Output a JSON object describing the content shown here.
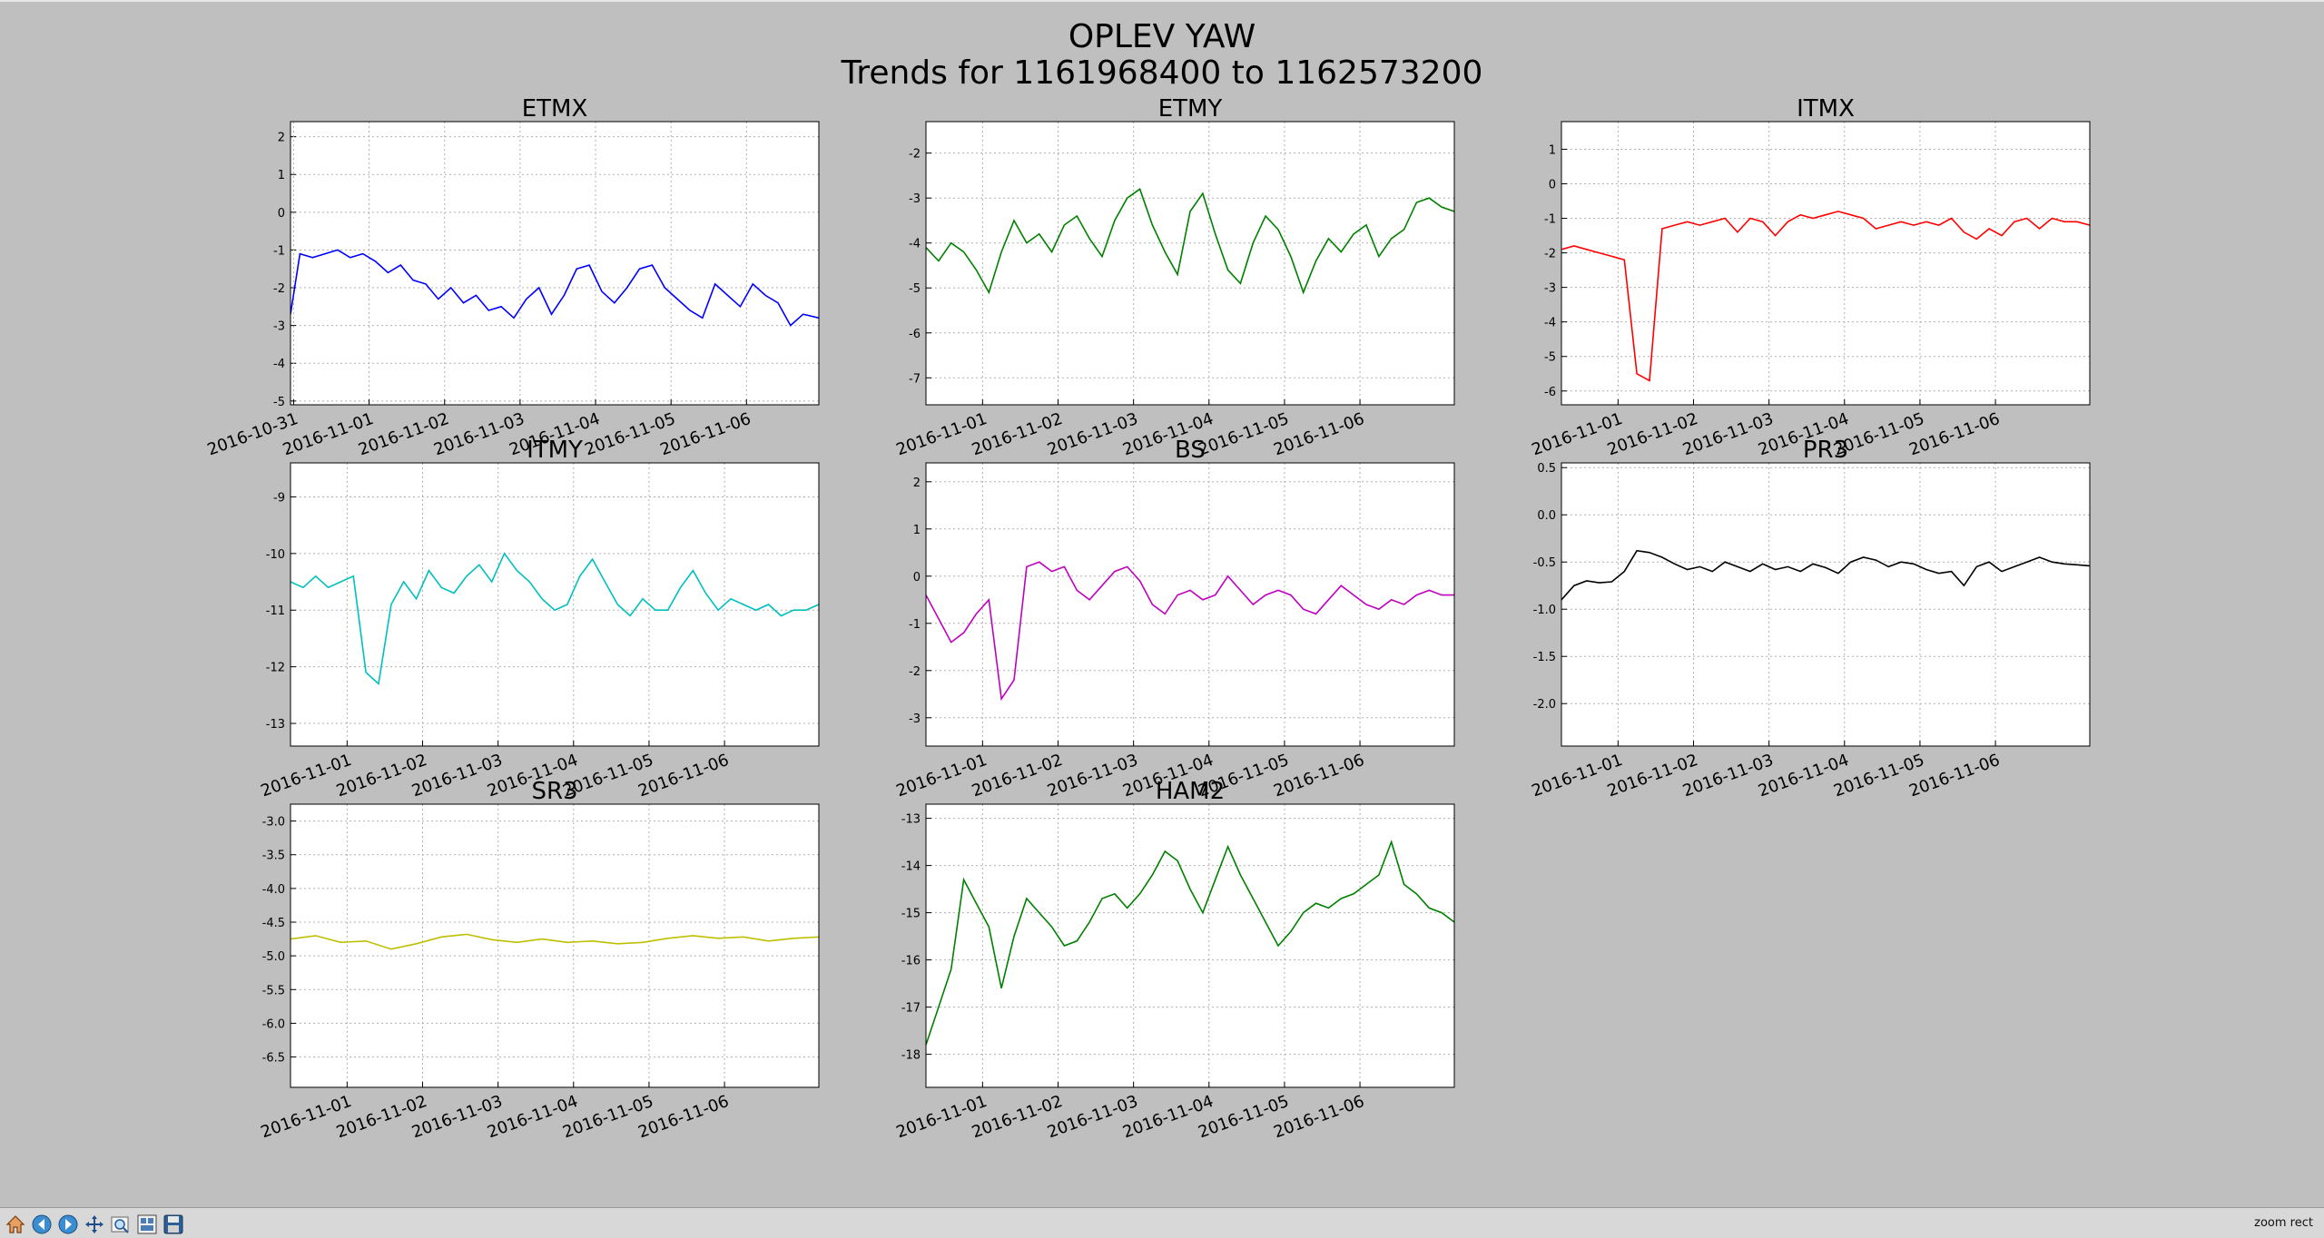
{
  "figure": {
    "title_line1": "OPLEV YAW",
    "title_line2": "Trends for 1161968400 to 1162573200"
  },
  "toolbar": {
    "buttons": [
      {
        "name": "home-button",
        "icon": "home-icon"
      },
      {
        "name": "back-button",
        "icon": "arrow-left-icon"
      },
      {
        "name": "forward-button",
        "icon": "arrow-right-icon"
      },
      {
        "name": "pan-button",
        "icon": "move-icon"
      },
      {
        "name": "zoom-button",
        "icon": "magnifier-icon"
      },
      {
        "name": "configure-subplots-button",
        "icon": "subplots-icon"
      },
      {
        "name": "save-button",
        "icon": "floppy-disk-icon"
      }
    ],
    "mode": "zoom rect"
  },
  "chart_data": [
    {
      "type": "line",
      "title": "ETMX",
      "color": "#0000ff",
      "xlim": [
        "2016-10-30T23:00",
        "2016-11-06T23:00"
      ],
      "xticks": [
        "2016-10-31",
        "2016-11-01",
        "2016-11-02",
        "2016-11-03",
        "2016-11-04",
        "2016-11-05",
        "2016-11-06"
      ],
      "ylim": [
        -5.1,
        2.4
      ],
      "yticks": [
        -5,
        -4,
        -3,
        -2,
        -1,
        0,
        1,
        2
      ],
      "grid": true,
      "x": [
        "2016-10-30T23:00",
        "2016-10-31T02:00",
        "2016-10-31T06:00",
        "2016-10-31T10:00",
        "2016-10-31T14:00",
        "2016-10-31T18:00",
        "2016-10-31T22:00",
        "2016-11-01T02:00",
        "2016-11-01T06:00",
        "2016-11-01T10:00",
        "2016-11-01T14:00",
        "2016-11-01T18:00",
        "2016-11-01T22:00",
        "2016-11-02T02:00",
        "2016-11-02T06:00",
        "2016-11-02T10:00",
        "2016-11-02T14:00",
        "2016-11-02T18:00",
        "2016-11-02T22:00",
        "2016-11-03T02:00",
        "2016-11-03T06:00",
        "2016-11-03T10:00",
        "2016-11-03T14:00",
        "2016-11-03T18:00",
        "2016-11-03T22:00",
        "2016-11-04T02:00",
        "2016-11-04T06:00",
        "2016-11-04T10:00",
        "2016-11-04T14:00",
        "2016-11-04T18:00",
        "2016-11-04T22:00",
        "2016-11-05T02:00",
        "2016-11-05T06:00",
        "2016-11-05T10:00",
        "2016-11-05T14:00",
        "2016-11-05T18:00",
        "2016-11-05T22:00",
        "2016-11-06T02:00",
        "2016-11-06T06:00",
        "2016-11-06T10:00",
        "2016-11-06T14:00",
        "2016-11-06T18:00",
        "2016-11-06T23:00"
      ],
      "y": [
        -2.7,
        -1.1,
        -1.2,
        -1.1,
        -1.0,
        -1.2,
        -1.1,
        -1.3,
        -1.6,
        -1.4,
        -1.8,
        -1.9,
        -2.3,
        -2.0,
        -2.4,
        -2.2,
        -2.6,
        -2.5,
        -2.8,
        -2.3,
        -2.0,
        -2.7,
        -2.2,
        -1.5,
        -1.4,
        -2.1,
        -2.4,
        -2.0,
        -1.5,
        -1.4,
        -2.0,
        -2.3,
        -2.6,
        -2.8,
        -1.9,
        -2.2,
        -2.5,
        -1.9,
        -2.2,
        -2.4,
        -3.0,
        -2.7,
        -2.8
      ]
    },
    {
      "type": "line",
      "title": "ETMY",
      "color": "#008000",
      "xlim": [
        "2016-10-31T06:00",
        "2016-11-07T06:00"
      ],
      "xticks": [
        "2016-11-01",
        "2016-11-02",
        "2016-11-03",
        "2016-11-04",
        "2016-11-05",
        "2016-11-06"
      ],
      "ylim": [
        -7.6,
        -1.3
      ],
      "yticks": [
        -7,
        -6,
        -5,
        -4,
        -3,
        -2
      ],
      "grid": true,
      "x": [
        "2016-10-31T06:00",
        "2016-10-31T10:00",
        "2016-10-31T14:00",
        "2016-10-31T18:00",
        "2016-10-31T22:00",
        "2016-11-01T02:00",
        "2016-11-01T06:00",
        "2016-11-01T10:00",
        "2016-11-01T14:00",
        "2016-11-01T18:00",
        "2016-11-01T22:00",
        "2016-11-02T02:00",
        "2016-11-02T06:00",
        "2016-11-02T10:00",
        "2016-11-02T14:00",
        "2016-11-02T18:00",
        "2016-11-02T22:00",
        "2016-11-03T02:00",
        "2016-11-03T06:00",
        "2016-11-03T10:00",
        "2016-11-03T14:00",
        "2016-11-03T18:00",
        "2016-11-03T22:00",
        "2016-11-04T02:00",
        "2016-11-04T06:00",
        "2016-11-04T10:00",
        "2016-11-04T14:00",
        "2016-11-04T18:00",
        "2016-11-04T22:00",
        "2016-11-05T02:00",
        "2016-11-05T06:00",
        "2016-11-05T10:00",
        "2016-11-05T14:00",
        "2016-11-05T18:00",
        "2016-11-05T22:00",
        "2016-11-06T02:00",
        "2016-11-06T06:00",
        "2016-11-06T10:00",
        "2016-11-06T14:00",
        "2016-11-06T18:00",
        "2016-11-06T22:00",
        "2016-11-07T02:00",
        "2016-11-07T06:00"
      ],
      "y": [
        -4.1,
        -4.4,
        -4.0,
        -4.2,
        -4.6,
        -5.1,
        -4.2,
        -3.5,
        -4.0,
        -3.8,
        -4.2,
        -3.6,
        -3.4,
        -3.9,
        -4.3,
        -3.5,
        -3.0,
        -2.8,
        -3.6,
        -4.2,
        -4.7,
        -3.3,
        -2.9,
        -3.8,
        -4.6,
        -4.9,
        -4.0,
        -3.4,
        -3.7,
        -4.3,
        -5.1,
        -4.4,
        -3.9,
        -4.2,
        -3.8,
        -3.6,
        -4.3,
        -3.9,
        -3.7,
        -3.1,
        -3.0,
        -3.2,
        -3.3
      ]
    },
    {
      "type": "line",
      "title": "ITMX",
      "color": "#ff0000",
      "xlim": [
        "2016-10-31T06:00",
        "2016-11-07T06:00"
      ],
      "xticks": [
        "2016-11-01",
        "2016-11-02",
        "2016-11-03",
        "2016-11-04",
        "2016-11-05",
        "2016-11-06"
      ],
      "ylim": [
        -6.4,
        1.8
      ],
      "yticks": [
        -6,
        -5,
        -4,
        -3,
        -2,
        -1,
        0,
        1
      ],
      "grid": true,
      "x": [
        "2016-10-31T06:00",
        "2016-10-31T10:00",
        "2016-10-31T14:00",
        "2016-10-31T18:00",
        "2016-10-31T22:00",
        "2016-11-01T02:00",
        "2016-11-01T06:00",
        "2016-11-01T10:00",
        "2016-11-01T14:00",
        "2016-11-01T18:00",
        "2016-11-01T22:00",
        "2016-11-02T02:00",
        "2016-11-02T06:00",
        "2016-11-02T10:00",
        "2016-11-02T14:00",
        "2016-11-02T18:00",
        "2016-11-02T22:00",
        "2016-11-03T02:00",
        "2016-11-03T06:00",
        "2016-11-03T10:00",
        "2016-11-03T14:00",
        "2016-11-03T18:00",
        "2016-11-03T22:00",
        "2016-11-04T02:00",
        "2016-11-04T06:00",
        "2016-11-04T10:00",
        "2016-11-04T14:00",
        "2016-11-04T18:00",
        "2016-11-04T22:00",
        "2016-11-05T02:00",
        "2016-11-05T06:00",
        "2016-11-05T10:00",
        "2016-11-05T14:00",
        "2016-11-05T18:00",
        "2016-11-05T22:00",
        "2016-11-06T02:00",
        "2016-11-06T06:00",
        "2016-11-06T10:00",
        "2016-11-06T14:00",
        "2016-11-06T18:00",
        "2016-11-06T22:00",
        "2016-11-07T02:00",
        "2016-11-07T06:00"
      ],
      "y": [
        -1.9,
        -1.8,
        -1.9,
        -2.0,
        -2.1,
        -2.2,
        -5.5,
        -5.7,
        -1.3,
        -1.2,
        -1.1,
        -1.2,
        -1.1,
        -1.0,
        -1.4,
        -1.0,
        -1.1,
        -1.5,
        -1.1,
        -0.9,
        -1.0,
        -0.9,
        -0.8,
        -0.9,
        -1.0,
        -1.3,
        -1.2,
        -1.1,
        -1.2,
        -1.1,
        -1.2,
        -1.0,
        -1.4,
        -1.6,
        -1.3,
        -1.5,
        -1.1,
        -1.0,
        -1.3,
        -1.0,
        -1.1,
        -1.1,
        -1.2
      ]
    },
    {
      "type": "line",
      "title": "ITMY",
      "color": "#00bfbf",
      "xlim": [
        "2016-10-31T06:00",
        "2016-11-07T06:00"
      ],
      "xticks": [
        "2016-11-01",
        "2016-11-02",
        "2016-11-03",
        "2016-11-04",
        "2016-11-05",
        "2016-11-06"
      ],
      "ylim": [
        -13.4,
        -8.4
      ],
      "yticks": [
        -13,
        -12,
        -11,
        -10,
        -9
      ],
      "grid": true,
      "x": [
        "2016-10-31T06:00",
        "2016-10-31T10:00",
        "2016-10-31T14:00",
        "2016-10-31T18:00",
        "2016-10-31T22:00",
        "2016-11-01T02:00",
        "2016-11-01T06:00",
        "2016-11-01T10:00",
        "2016-11-01T14:00",
        "2016-11-01T18:00",
        "2016-11-01T22:00",
        "2016-11-02T02:00",
        "2016-11-02T06:00",
        "2016-11-02T10:00",
        "2016-11-02T14:00",
        "2016-11-02T18:00",
        "2016-11-02T22:00",
        "2016-11-03T02:00",
        "2016-11-03T06:00",
        "2016-11-03T10:00",
        "2016-11-03T14:00",
        "2016-11-03T18:00",
        "2016-11-03T22:00",
        "2016-11-04T02:00",
        "2016-11-04T06:00",
        "2016-11-04T10:00",
        "2016-11-04T14:00",
        "2016-11-04T18:00",
        "2016-11-04T22:00",
        "2016-11-05T02:00",
        "2016-11-05T06:00",
        "2016-11-05T10:00",
        "2016-11-05T14:00",
        "2016-11-05T18:00",
        "2016-11-05T22:00",
        "2016-11-06T02:00",
        "2016-11-06T06:00",
        "2016-11-06T10:00",
        "2016-11-06T14:00",
        "2016-11-06T18:00",
        "2016-11-06T22:00",
        "2016-11-07T02:00",
        "2016-11-07T06:00"
      ],
      "y": [
        -10.5,
        -10.6,
        -10.4,
        -10.6,
        -10.5,
        -10.4,
        -12.1,
        -12.3,
        -10.9,
        -10.5,
        -10.8,
        -10.3,
        -10.6,
        -10.7,
        -10.4,
        -10.2,
        -10.5,
        -10.0,
        -10.3,
        -10.5,
        -10.8,
        -11.0,
        -10.9,
        -10.4,
        -10.1,
        -10.5,
        -10.9,
        -11.1,
        -10.8,
        -11.0,
        -11.0,
        -10.6,
        -10.3,
        -10.7,
        -11.0,
        -10.8,
        -10.9,
        -11.0,
        -10.9,
        -11.1,
        -11.0,
        -11.0,
        -10.9
      ]
    },
    {
      "type": "line",
      "title": "BS",
      "color": "#bf00bf",
      "xlim": [
        "2016-10-31T06:00",
        "2016-11-07T06:00"
      ],
      "xticks": [
        "2016-11-01",
        "2016-11-02",
        "2016-11-03",
        "2016-11-04",
        "2016-11-05",
        "2016-11-06"
      ],
      "ylim": [
        -3.6,
        2.4
      ],
      "yticks": [
        -3,
        -2,
        -1,
        0,
        1,
        2
      ],
      "grid": true,
      "x": [
        "2016-10-31T06:00",
        "2016-10-31T10:00",
        "2016-10-31T14:00",
        "2016-10-31T18:00",
        "2016-10-31T22:00",
        "2016-11-01T02:00",
        "2016-11-01T06:00",
        "2016-11-01T10:00",
        "2016-11-01T14:00",
        "2016-11-01T18:00",
        "2016-11-01T22:00",
        "2016-11-02T02:00",
        "2016-11-02T06:00",
        "2016-11-02T10:00",
        "2016-11-02T14:00",
        "2016-11-02T18:00",
        "2016-11-02T22:00",
        "2016-11-03T02:00",
        "2016-11-03T06:00",
        "2016-11-03T10:00",
        "2016-11-03T14:00",
        "2016-11-03T18:00",
        "2016-11-03T22:00",
        "2016-11-04T02:00",
        "2016-11-04T06:00",
        "2016-11-04T10:00",
        "2016-11-04T14:00",
        "2016-11-04T18:00",
        "2016-11-04T22:00",
        "2016-11-05T02:00",
        "2016-11-05T06:00",
        "2016-11-05T10:00",
        "2016-11-05T14:00",
        "2016-11-05T18:00",
        "2016-11-05T22:00",
        "2016-11-06T02:00",
        "2016-11-06T06:00",
        "2016-11-06T10:00",
        "2016-11-06T14:00",
        "2016-11-06T18:00",
        "2016-11-06T22:00",
        "2016-11-07T02:00",
        "2016-11-07T06:00"
      ],
      "y": [
        -0.4,
        -0.9,
        -1.4,
        -1.2,
        -0.8,
        -0.5,
        -2.6,
        -2.2,
        0.2,
        0.3,
        0.1,
        0.2,
        -0.3,
        -0.5,
        -0.2,
        0.1,
        0.2,
        -0.1,
        -0.6,
        -0.8,
        -0.4,
        -0.3,
        -0.5,
        -0.4,
        0.0,
        -0.3,
        -0.6,
        -0.4,
        -0.3,
        -0.4,
        -0.7,
        -0.8,
        -0.5,
        -0.2,
        -0.4,
        -0.6,
        -0.7,
        -0.5,
        -0.6,
        -0.4,
        -0.3,
        -0.4,
        -0.4
      ]
    },
    {
      "type": "line",
      "title": "PR3",
      "color": "#000000",
      "xlim": [
        "2016-10-31T06:00",
        "2016-11-07T06:00"
      ],
      "xticks": [
        "2016-11-01",
        "2016-11-02",
        "2016-11-03",
        "2016-11-04",
        "2016-11-05",
        "2016-11-06"
      ],
      "ylim": [
        -2.45,
        0.55
      ],
      "yticks": [
        -2.0,
        -1.5,
        -1.0,
        -0.5,
        0.0,
        0.5
      ],
      "grid": true,
      "x": [
        "2016-10-31T06:00",
        "2016-10-31T10:00",
        "2016-10-31T14:00",
        "2016-10-31T18:00",
        "2016-10-31T22:00",
        "2016-11-01T02:00",
        "2016-11-01T06:00",
        "2016-11-01T10:00",
        "2016-11-01T14:00",
        "2016-11-01T18:00",
        "2016-11-01T22:00",
        "2016-11-02T02:00",
        "2016-11-02T06:00",
        "2016-11-02T10:00",
        "2016-11-02T14:00",
        "2016-11-02T18:00",
        "2016-11-02T22:00",
        "2016-11-03T02:00",
        "2016-11-03T06:00",
        "2016-11-03T10:00",
        "2016-11-03T14:00",
        "2016-11-03T18:00",
        "2016-11-03T22:00",
        "2016-11-04T02:00",
        "2016-11-04T06:00",
        "2016-11-04T10:00",
        "2016-11-04T14:00",
        "2016-11-04T18:00",
        "2016-11-04T22:00",
        "2016-11-05T02:00",
        "2016-11-05T06:00",
        "2016-11-05T10:00",
        "2016-11-05T14:00",
        "2016-11-05T18:00",
        "2016-11-05T22:00",
        "2016-11-06T02:00",
        "2016-11-06T06:00",
        "2016-11-06T10:00",
        "2016-11-06T14:00",
        "2016-11-06T18:00",
        "2016-11-06T22:00",
        "2016-11-07T02:00",
        "2016-11-07T06:00"
      ],
      "y": [
        -0.9,
        -0.75,
        -0.7,
        -0.72,
        -0.71,
        -0.6,
        -0.38,
        -0.4,
        -0.45,
        -0.52,
        -0.58,
        -0.55,
        -0.6,
        -0.5,
        -0.55,
        -0.6,
        -0.52,
        -0.58,
        -0.55,
        -0.6,
        -0.52,
        -0.56,
        -0.62,
        -0.5,
        -0.45,
        -0.48,
        -0.55,
        -0.5,
        -0.52,
        -0.58,
        -0.62,
        -0.6,
        -0.75,
        -0.55,
        -0.5,
        -0.6,
        -0.55,
        -0.5,
        -0.45,
        -0.5,
        -0.52,
        -0.53,
        -0.54
      ]
    },
    {
      "type": "line",
      "title": "SR3",
      "color": "#bfbf00",
      "xlim": [
        "2016-10-31T06:00",
        "2016-11-07T06:00"
      ],
      "xticks": [
        "2016-11-01",
        "2016-11-02",
        "2016-11-03",
        "2016-11-04",
        "2016-11-05",
        "2016-11-06"
      ],
      "ylim": [
        -6.95,
        -2.75
      ],
      "yticks": [
        -6.5,
        -6.0,
        -5.5,
        -5.0,
        -4.5,
        -4.0,
        -3.5,
        -3.0
      ],
      "grid": true,
      "x": [
        "2016-10-31T06:00",
        "2016-10-31T14:00",
        "2016-10-31T22:00",
        "2016-11-01T06:00",
        "2016-11-01T14:00",
        "2016-11-01T22:00",
        "2016-11-02T06:00",
        "2016-11-02T14:00",
        "2016-11-02T22:00",
        "2016-11-03T06:00",
        "2016-11-03T14:00",
        "2016-11-03T22:00",
        "2016-11-04T06:00",
        "2016-11-04T14:00",
        "2016-11-04T22:00",
        "2016-11-05T06:00",
        "2016-11-05T14:00",
        "2016-11-05T22:00",
        "2016-11-06T06:00",
        "2016-11-06T14:00",
        "2016-11-06T22:00",
        "2016-11-07T06:00"
      ],
      "y": [
        -4.75,
        -4.7,
        -4.8,
        -4.78,
        -4.9,
        -4.82,
        -4.72,
        -4.68,
        -4.76,
        -4.8,
        -4.75,
        -4.8,
        -4.78,
        -4.82,
        -4.8,
        -4.74,
        -4.7,
        -4.74,
        -4.72,
        -4.78,
        -4.74,
        -4.72
      ]
    },
    {
      "type": "line",
      "title": "HAM2",
      "color": "#008000",
      "xlim": [
        "2016-10-31T06:00",
        "2016-11-07T06:00"
      ],
      "xticks": [
        "2016-11-01",
        "2016-11-02",
        "2016-11-03",
        "2016-11-04",
        "2016-11-05",
        "2016-11-06"
      ],
      "ylim": [
        -18.7,
        -12.7
      ],
      "yticks": [
        -18,
        -17,
        -16,
        -15,
        -14,
        -13
      ],
      "grid": true,
      "x": [
        "2016-10-31T06:00",
        "2016-10-31T10:00",
        "2016-10-31T14:00",
        "2016-10-31T18:00",
        "2016-10-31T22:00",
        "2016-11-01T02:00",
        "2016-11-01T06:00",
        "2016-11-01T10:00",
        "2016-11-01T14:00",
        "2016-11-01T18:00",
        "2016-11-01T22:00",
        "2016-11-02T02:00",
        "2016-11-02T06:00",
        "2016-11-02T10:00",
        "2016-11-02T14:00",
        "2016-11-02T18:00",
        "2016-11-02T22:00",
        "2016-11-03T02:00",
        "2016-11-03T06:00",
        "2016-11-03T10:00",
        "2016-11-03T14:00",
        "2016-11-03T18:00",
        "2016-11-03T22:00",
        "2016-11-04T02:00",
        "2016-11-04T06:00",
        "2016-11-04T10:00",
        "2016-11-04T14:00",
        "2016-11-04T18:00",
        "2016-11-04T22:00",
        "2016-11-05T02:00",
        "2016-11-05T06:00",
        "2016-11-05T10:00",
        "2016-11-05T14:00",
        "2016-11-05T18:00",
        "2016-11-05T22:00",
        "2016-11-06T02:00",
        "2016-11-06T06:00",
        "2016-11-06T10:00",
        "2016-11-06T14:00",
        "2016-11-06T18:00",
        "2016-11-06T22:00",
        "2016-11-07T02:00",
        "2016-11-07T06:00"
      ],
      "y": [
        -17.8,
        -17.0,
        -16.2,
        -14.3,
        -14.8,
        -15.3,
        -16.6,
        -15.5,
        -14.7,
        -15.0,
        -15.3,
        -15.7,
        -15.6,
        -15.2,
        -14.7,
        -14.6,
        -14.9,
        -14.6,
        -14.2,
        -13.7,
        -13.9,
        -14.5,
        -15.0,
        -14.3,
        -13.6,
        -14.2,
        -14.7,
        -15.2,
        -15.7,
        -15.4,
        -15.0,
        -14.8,
        -14.9,
        -14.7,
        -14.6,
        -14.4,
        -14.2,
        -13.5,
        -14.4,
        -14.6,
        -14.9,
        -15.0,
        -15.2
      ]
    }
  ]
}
